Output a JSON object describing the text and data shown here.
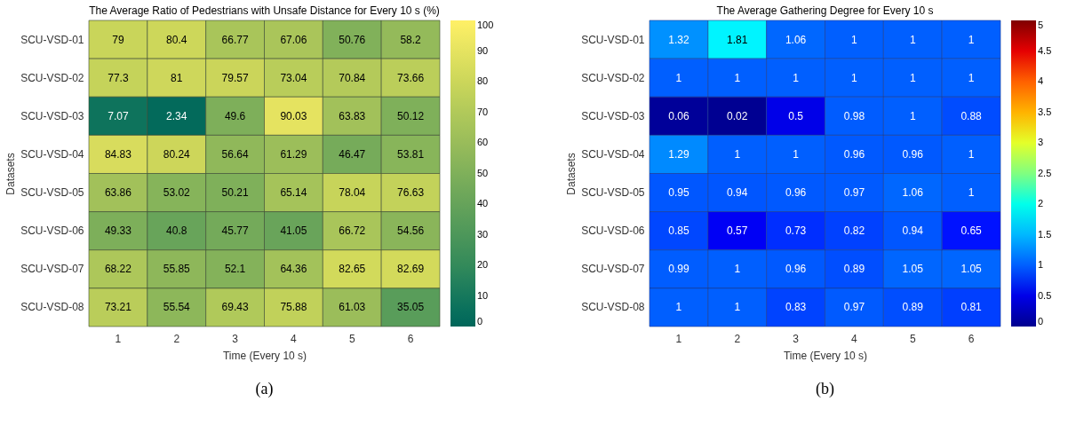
{
  "chart_data": [
    {
      "type": "heatmap",
      "title": "The Average Ratio of Pedestrians with Unsafe Distance for Every 10 s (%)",
      "xlabel": "Time (Every 10 s)",
      "ylabel": "Datasets",
      "categories": [
        "1",
        "2",
        "3",
        "4",
        "5",
        "6"
      ],
      "y_categories": [
        "SCU-VSD-01",
        "SCU-VSD-02",
        "SCU-VSD-03",
        "SCU-VSD-04",
        "SCU-VSD-05",
        "SCU-VSD-06",
        "SCU-VSD-07",
        "SCU-VSD-08"
      ],
      "cells": [
        [
          79,
          80.4,
          66.77,
          67.06,
          50.76,
          58.2
        ],
        [
          77.3,
          81,
          79.57,
          73.04,
          70.84,
          73.66
        ],
        [
          7.07,
          2.34,
          49.6,
          90.03,
          63.83,
          50.12
        ],
        [
          84.83,
          80.24,
          56.64,
          61.29,
          46.47,
          53.81
        ],
        [
          63.86,
          53.02,
          50.21,
          65.14,
          78.04,
          76.63
        ],
        [
          49.33,
          40.8,
          45.77,
          41.05,
          66.72,
          54.56
        ],
        [
          68.22,
          55.85,
          52.1,
          64.36,
          82.65,
          82.69
        ],
        [
          73.21,
          55.54,
          69.43,
          75.88,
          61.03,
          35.05
        ]
      ],
      "data_labels": true,
      "clim": [
        0,
        100
      ],
      "cticks": [
        0,
        10,
        20,
        30,
        40,
        50,
        60,
        70,
        80,
        90,
        100
      ],
      "annotations": [
        "(a)"
      ]
    },
    {
      "type": "heatmap",
      "title": "The Average Gathering Degree for Every 10 s",
      "xlabel": "Time (Every 10 s)",
      "ylabel": "Datasets",
      "categories": [
        "1",
        "2",
        "3",
        "4",
        "5",
        "6"
      ],
      "y_categories": [
        "SCU-VSD-01",
        "SCU-VSD-02",
        "SCU-VSD-03",
        "SCU-VSD-04",
        "SCU-VSD-05",
        "SCU-VSD-06",
        "SCU-VSD-07",
        "SCU-VSD-08"
      ],
      "cells": [
        [
          1.32,
          1.81,
          1.06,
          1,
          1,
          1
        ],
        [
          1,
          1,
          1,
          1,
          1,
          1
        ],
        [
          0.06,
          0.02,
          0.5,
          0.98,
          1,
          0.88
        ],
        [
          1.29,
          1,
          1,
          0.96,
          0.96,
          1
        ],
        [
          0.95,
          0.94,
          0.96,
          0.97,
          1.06,
          1
        ],
        [
          0.85,
          0.57,
          0.73,
          0.82,
          0.94,
          0.65
        ],
        [
          0.99,
          1,
          0.96,
          0.89,
          1.05,
          1.05
        ],
        [
          1,
          1,
          0.83,
          0.97,
          0.89,
          0.81
        ]
      ],
      "data_labels": true,
      "clim": [
        0,
        5
      ],
      "cticks": [
        0,
        0.5,
        1,
        1.5,
        2,
        2.5,
        3,
        3.5,
        4,
        4.5,
        5
      ],
      "annotations": [
        "(b)"
      ]
    }
  ]
}
